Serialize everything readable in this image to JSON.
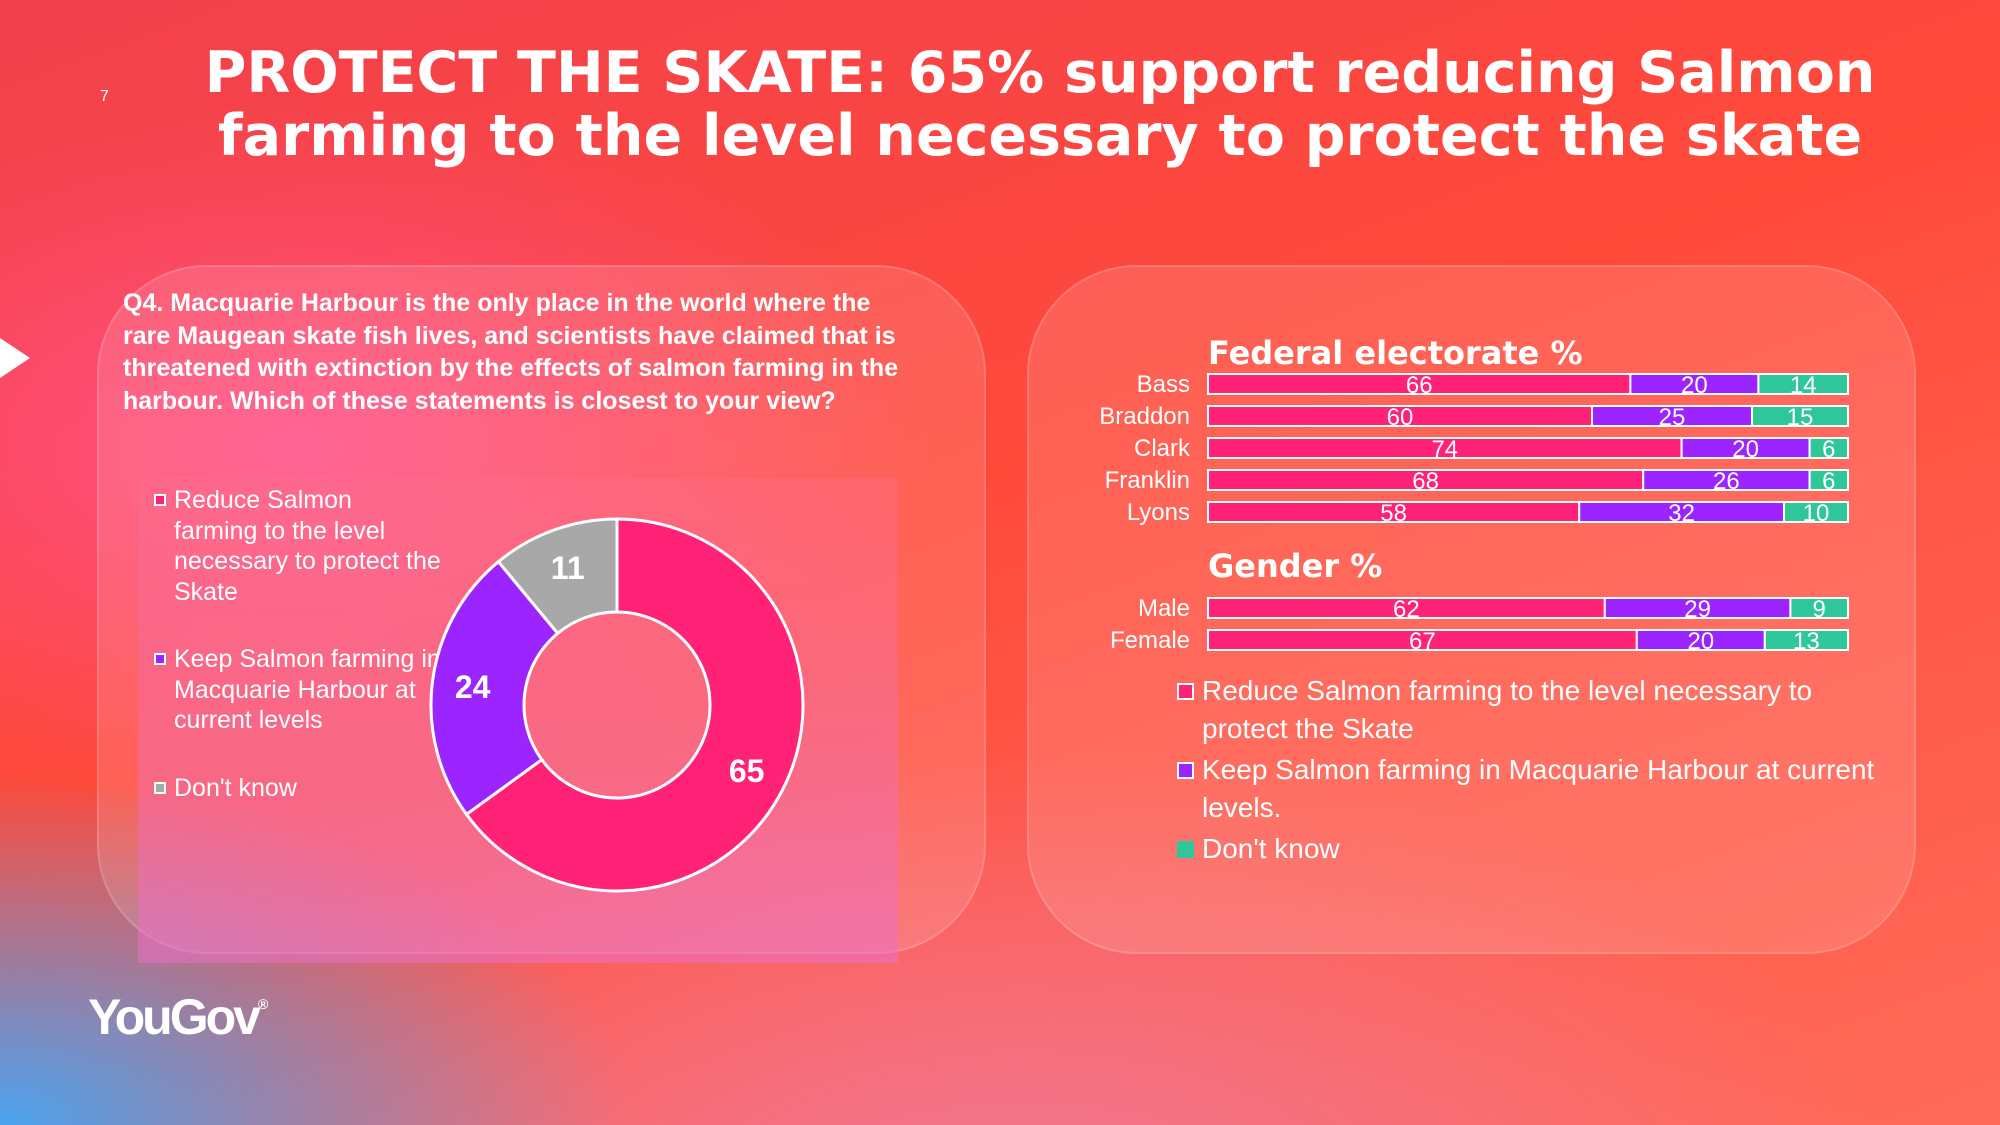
{
  "page": {
    "number": "7"
  },
  "title": "PROTECT THE SKATE: 65% support reducing Salmon farming to the level necessary to protect the skate",
  "question": "Q4.  Macquarie Harbour is the only place in the world where the rare Maugean skate fish lives, and scientists have claimed that is threatened with extinction by the effects of salmon farming in the harbour. Which of these statements is closest to your view?",
  "colors": {
    "reduce": "#ff2277",
    "keep": "#9b24ff",
    "dont_know_donut": "#a8a8a8",
    "dont_know_bar": "#2ec79a"
  },
  "donut_legend": [
    {
      "label": "Reduce Salmon farming to the level necessary to protect the Skate",
      "swatch_color": "#ff2277"
    },
    {
      "label": "Keep Salmon farming in Macquarie Harbour at current levels",
      "swatch_color": "#9b24ff"
    },
    {
      "label": "Don't know",
      "swatch_color": "#a8a8a8"
    }
  ],
  "bar_legend": [
    {
      "label": "Reduce Salmon farming to the level necessary to protect the Skate",
      "swatch_color": "#ff2277"
    },
    {
      "label": "Keep Salmon farming in Macquarie Harbour at current levels.",
      "swatch_color": "#9b24ff"
    },
    {
      "label": "Don't know",
      "swatch_color": "#2ec79a"
    }
  ],
  "chart_data": [
    {
      "type": "pie",
      "donut": true,
      "categories": [
        "Reduce Salmon farming to the level necessary to protect the Skate",
        "Keep Salmon farming in Macquarie Harbour at current levels",
        "Don't know"
      ],
      "values": [
        65,
        24,
        11
      ],
      "legend_position": "left"
    },
    {
      "type": "bar",
      "orientation": "horizontal",
      "stacked": true,
      "title": "Federal electorate %",
      "categories": [
        "Bass",
        "Braddon",
        "Clark",
        "Franklin",
        "Lyons"
      ],
      "series": [
        {
          "name": "Reduce Salmon farming to the level necessary to protect the Skate",
          "values": [
            66,
            60,
            74,
            68,
            58
          ]
        },
        {
          "name": "Keep Salmon farming in Macquarie Harbour at current levels.",
          "values": [
            20,
            25,
            20,
            26,
            32
          ]
        },
        {
          "name": "Don't know",
          "values": [
            14,
            15,
            6,
            6,
            10
          ]
        }
      ]
    },
    {
      "type": "bar",
      "orientation": "horizontal",
      "stacked": true,
      "title": "Gender %",
      "categories": [
        "Male",
        "Female"
      ],
      "series": [
        {
          "name": "Reduce Salmon farming to the level necessary to protect the Skate",
          "values": [
            62,
            67
          ]
        },
        {
          "name": "Keep Salmon farming in Macquarie Harbour at current levels.",
          "values": [
            29,
            20
          ]
        },
        {
          "name": "Don't know",
          "values": [
            9,
            13
          ]
        }
      ]
    }
  ],
  "logo": {
    "text": "YouGov",
    "mark": "®"
  }
}
